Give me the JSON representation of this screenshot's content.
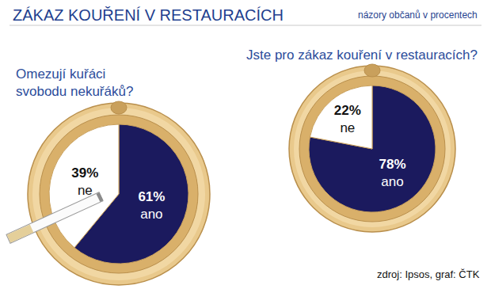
{
  "title": "ZÁKAZ KOUŘENÍ V RESTAURACÍCH",
  "subtitle": "názory občanů v procentech",
  "source": "zdroj: Ipsos, graf: ČTK",
  "chart_data": [
    {
      "type": "pie",
      "title": "Omezují kuřáci\nsvobodu nekuřáků?",
      "categories": [
        "ano",
        "ne"
      ],
      "values": [
        61,
        39
      ],
      "value_labels": [
        "61%",
        "39%"
      ],
      "colors": [
        "#1b1a5e",
        "#ffffff"
      ],
      "data_labels": true
    },
    {
      "type": "pie",
      "title": "Jste pro zákaz kouření v restauracích?",
      "categories": [
        "ano",
        "ne"
      ],
      "values": [
        78,
        22
      ],
      "value_labels": [
        "78%",
        "22%"
      ],
      "colors": [
        "#1b1a5e",
        "#ffffff"
      ],
      "data_labels": true
    }
  ]
}
